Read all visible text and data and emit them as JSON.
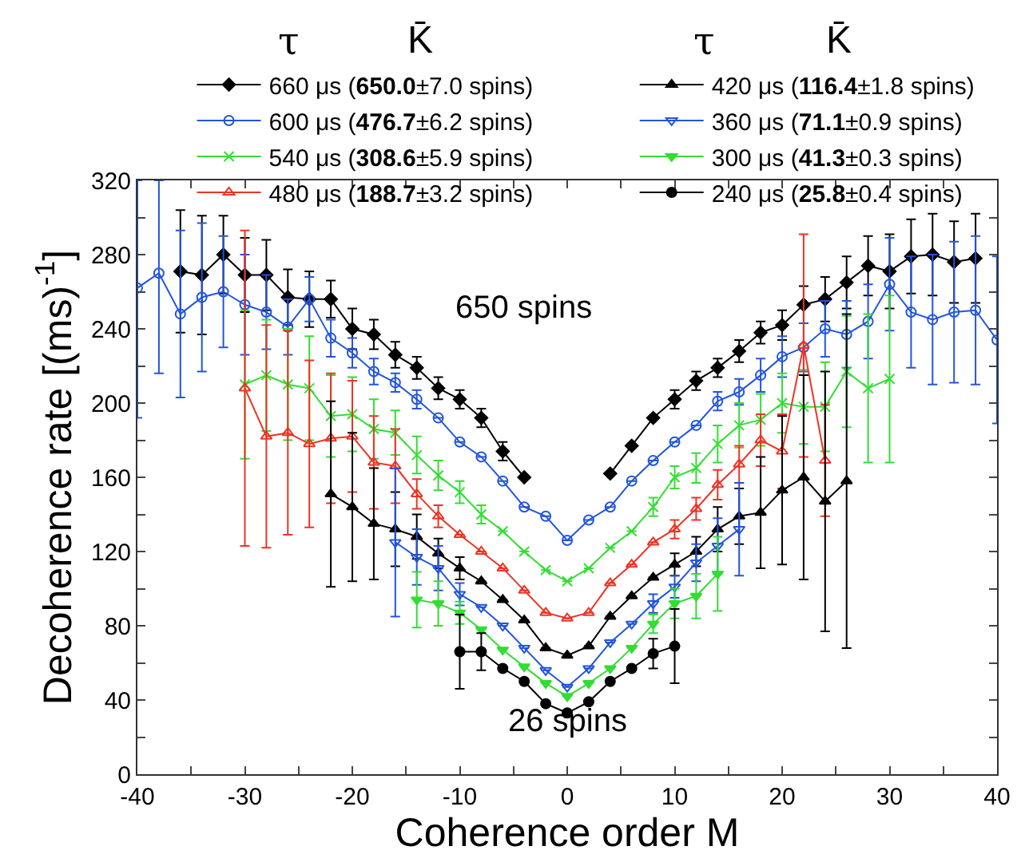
{
  "chart_data": {
    "type": "line",
    "xlabel": "Coherence order M",
    "ylabel": "Decoherence rate [(ms)$^{-1}$]",
    "xlim": [
      -40,
      40
    ],
    "xticks": [
      -40,
      {
        "value": -35,
        "label": null
      },
      -30,
      {
        "value": -25,
        "label": null
      },
      -20,
      {
        "value": -15,
        "label": null
      },
      -10,
      {
        "value": -5,
        "label": null
      },
      0,
      {
        "value": 5,
        "label": null
      },
      10,
      {
        "value": 15,
        "label": null
      },
      20,
      {
        "value": 25,
        "label": null
      },
      30,
      {
        "value": 35,
        "label": null
      },
      40
    ],
    "ylim": [
      0,
      320
    ],
    "yticks": [
      0,
      {
        "value": 20,
        "label": null
      },
      40,
      {
        "value": 60,
        "label": null
      },
      80,
      {
        "value": 100,
        "label": null
      },
      120,
      {
        "value": 140,
        "label": null
      },
      160,
      {
        "value": 180,
        "label": null
      },
      200,
      {
        "value": 220,
        "label": null
      },
      240,
      {
        "value": 260,
        "label": null
      },
      280,
      {
        "value": 300,
        "label": null
      },
      320
    ],
    "legend": "top",
    "line_style": "solid",
    "annotations": [
      "τ",
      "K̄",
      "τ",
      "K̄",
      "650 spins",
      "26 spins"
    ],
    "series": [
      {
        "name": "660 μs (650.0±7.0 spins)",
        "color": "#000000",
        "marker": "diamond",
        "x": [
          -36,
          -34,
          -32,
          -30,
          -28,
          -26,
          -24,
          -22,
          -20,
          -18,
          -16,
          -14,
          -12,
          -10,
          -8,
          -6,
          -4,
          -2,
          0,
          2,
          4,
          6,
          8,
          10,
          12,
          14,
          16,
          18,
          20,
          22,
          24,
          26,
          28,
          30,
          32,
          34,
          36,
          38
        ],
        "values": [
          271,
          269,
          280,
          269,
          269,
          257,
          256,
          256,
          240,
          237,
          226,
          219,
          208,
          202,
          192,
          174,
          160,
          null,
          null,
          null,
          162,
          177,
          192,
          202,
          212,
          219,
          228,
          238,
          242,
          253,
          256,
          265,
          274,
          271,
          279,
          280,
          276,
          278
        ],
        "errors": [
          33,
          32,
          21,
          20,
          19,
          15,
          15,
          10,
          11,
          8,
          7,
          6,
          6,
          5,
          5,
          5,
          null,
          null,
          null,
          null,
          null,
          null,
          null,
          5,
          5,
          5,
          6,
          6,
          8,
          10,
          12,
          14,
          16,
          20,
          20,
          22,
          22,
          24
        ]
      },
      {
        "name": "600 μs (476.7±6.2 spins)",
        "color": "#2255dd",
        "marker": "circle-open",
        "x": [
          -40,
          -38,
          -36,
          -34,
          -32,
          -30,
          -28,
          -26,
          -24,
          -22,
          -20,
          -18,
          -16,
          -14,
          -12,
          -10,
          -8,
          -6,
          -4,
          -2,
          0,
          2,
          4,
          6,
          8,
          10,
          12,
          14,
          16,
          18,
          20,
          22,
          24,
          26,
          28,
          30,
          32,
          34,
          36,
          38,
          40
        ],
        "values": [
          262,
          270,
          248,
          257,
          260,
          253,
          249,
          241,
          256,
          235,
          227,
          217,
          211,
          202,
          192,
          179,
          171,
          158,
          144,
          139,
          126,
          137,
          144,
          158,
          169,
          179,
          188,
          201,
          206,
          215,
          225,
          230,
          240,
          237,
          244,
          264,
          249,
          245,
          249,
          250,
          234
        ],
        "errors": [
          [
            192,
            320
          ],
          [
            216,
            320
          ],
          45,
          40,
          30,
          27,
          20,
          15,
          12,
          10,
          8,
          7,
          5,
          5,
          null,
          null,
          null,
          null,
          null,
          null,
          null,
          null,
          null,
          null,
          null,
          null,
          null,
          5,
          7,
          9,
          11,
          13,
          15,
          18,
          20,
          25,
          30,
          35,
          38,
          40,
          45
        ]
      },
      {
        "name": "540 μs (308.6±5.9 spins)",
        "color": "#33dd33",
        "marker": "x",
        "x": [
          -30,
          -28,
          -26,
          -24,
          -22,
          -20,
          -18,
          -16,
          -14,
          -12,
          -10,
          -8,
          -6,
          -4,
          -2,
          0,
          2,
          4,
          6,
          8,
          10,
          12,
          14,
          16,
          18,
          20,
          22,
          24,
          26,
          28,
          30
        ],
        "values": [
          210,
          215,
          210,
          208,
          193,
          194,
          186,
          184,
          172,
          161,
          152,
          140,
          131,
          120,
          110,
          104,
          111,
          122,
          131,
          144,
          160,
          165,
          178,
          188,
          191,
          200,
          198,
          198,
          217,
          208,
          213
        ],
        "errors": [
          40,
          30,
          30,
          28,
          22,
          20,
          16,
          12,
          10,
          8,
          6,
          5,
          null,
          null,
          null,
          null,
          null,
          null,
          null,
          5,
          6,
          8,
          10,
          12,
          14,
          16,
          20,
          24,
          30,
          40,
          45
        ]
      },
      {
        "name": "480 μs (188.7±3.2 spins)",
        "color": "#ee3322",
        "marker": "triangle-up-open",
        "x": [
          -30,
          -28,
          -26,
          -24,
          -22,
          -20,
          -18,
          -16,
          -14,
          -12,
          -10,
          -8,
          -6,
          -4,
          -2,
          0,
          2,
          4,
          6,
          8,
          10,
          12,
          14,
          16,
          18,
          20,
          22,
          24
        ],
        "values": [
          208,
          182,
          184,
          178,
          181,
          182,
          168,
          166,
          151,
          139,
          129,
          120,
          111,
          99,
          87,
          84,
          87,
          103,
          113,
          125,
          132,
          143,
          156,
          167,
          180,
          174,
          231,
          169
        ],
        "errors": [
          85,
          60,
          55,
          45,
          35,
          30,
          25,
          20,
          8,
          6,
          null,
          null,
          null,
          null,
          null,
          null,
          null,
          null,
          null,
          null,
          5,
          6,
          8,
          10,
          14,
          20,
          60,
          30
        ]
      },
      {
        "name": "420 μs (116.4±1.8 spins)",
        "color": "#000000",
        "marker": "triangle-up",
        "x": [
          -22,
          -20,
          -18,
          -16,
          -14,
          -12,
          -10,
          -8,
          -6,
          -4,
          -2,
          0,
          2,
          4,
          6,
          8,
          10,
          12,
          14,
          16,
          18,
          20,
          22,
          24,
          26
        ],
        "values": [
          151,
          144,
          135,
          132,
          128,
          119,
          111,
          104,
          94,
          83,
          68,
          64,
          69,
          85,
          96,
          106,
          113,
          120,
          132,
          139,
          141,
          153,
          160,
          147,
          158
        ],
        "errors": [
          50,
          40,
          30,
          20,
          12,
          8,
          6,
          null,
          null,
          null,
          null,
          null,
          null,
          null,
          null,
          null,
          6,
          8,
          12,
          15,
          30,
          40,
          55,
          70,
          90
        ]
      },
      {
        "name": "360 μs (71.1±0.9 spins)",
        "color": "#2255dd",
        "marker": "triangle-down-open",
        "x": [
          -16,
          -14,
          -12,
          -10,
          -8,
          -6,
          -4,
          -2,
          0,
          2,
          4,
          6,
          8,
          10,
          12,
          14,
          16
        ],
        "values": [
          125,
          117,
          111,
          97,
          90,
          80,
          68,
          56,
          47,
          57,
          71,
          81,
          92,
          101,
          114,
          123,
          132
        ],
        "errors": [
          40,
          15,
          12,
          6,
          null,
          null,
          null,
          null,
          null,
          null,
          null,
          null,
          5,
          6,
          10,
          15,
          25
        ]
      },
      {
        "name": "300 μs (41.3±0.3 spins)",
        "color": "#33dd33",
        "marker": "triangle-down",
        "x": [
          -14,
          -12,
          -10,
          -8,
          -6,
          -4,
          -2,
          0,
          2,
          4,
          6,
          8,
          10,
          12,
          14
        ],
        "values": [
          94,
          92,
          87,
          78,
          67,
          58,
          49,
          42,
          49,
          57,
          68,
          81,
          92,
          96,
          108
        ],
        "errors": [
          15,
          12,
          6,
          null,
          null,
          null,
          null,
          null,
          null,
          null,
          null,
          5,
          8,
          12,
          20
        ]
      },
      {
        "name": "240 μs (25.8±0.4 spins)",
        "color": "#000000",
        "marker": "circle",
        "x": [
          -10,
          -8,
          -6,
          -4,
          -2,
          0,
          2,
          4,
          6,
          8,
          10
        ],
        "values": [
          66,
          66,
          57,
          50,
          38,
          33,
          39,
          50,
          57,
          65,
          69
        ],
        "errors": [
          20,
          10,
          null,
          null,
          null,
          null,
          null,
          null,
          null,
          8,
          20
        ]
      }
    ]
  }
}
